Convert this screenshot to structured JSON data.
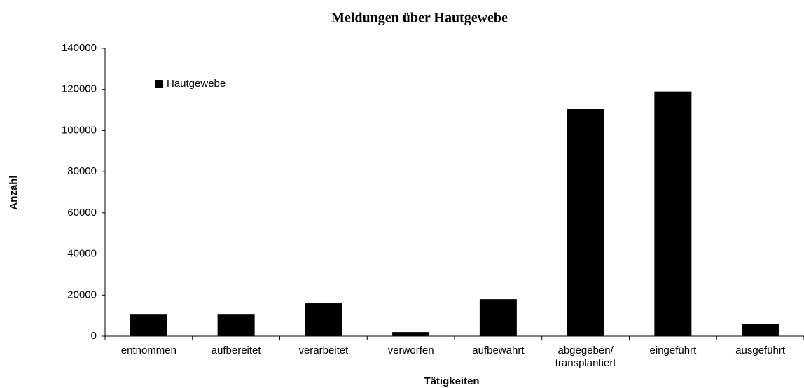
{
  "chart_data": {
    "type": "bar",
    "title": "Meldungen über Hautgewebe",
    "x_label": "Tätigkeiten",
    "y_label": "Anzahl",
    "categories": [
      "entnommen",
      "aufbereitet",
      "verarbeitet",
      "verworfen",
      "aufbewahrt",
      "abgegeben/ transplantiert",
      "eingeführt",
      "ausgeführt"
    ],
    "series": [
      {
        "name": "Hautgewebe",
        "color": "#000000",
        "values": [
          10500,
          10500,
          16000,
          2000,
          18000,
          110500,
          119000,
          5800
        ]
      }
    ],
    "ylim": [
      0,
      140000
    ],
    "yticks": [
      0,
      20000,
      40000,
      60000,
      80000,
      100000,
      120000,
      140000
    ],
    "grid": false,
    "legend": "upper left"
  }
}
